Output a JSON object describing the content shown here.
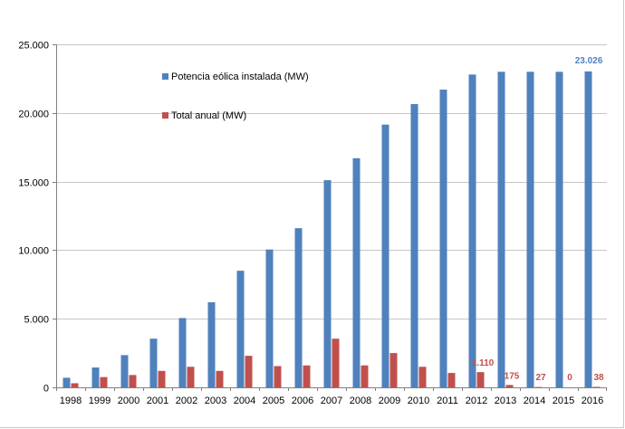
{
  "chart_data": {
    "type": "bar",
    "categories": [
      "1998",
      "1999",
      "2000",
      "2001",
      "2002",
      "2003",
      "2004",
      "2005",
      "2006",
      "2007",
      "2008",
      "2009",
      "2010",
      "2011",
      "2012",
      "2013",
      "2014",
      "2015",
      "2016"
    ],
    "series": [
      {
        "name": "Potencia eólica instalada (MW)",
        "color": "#4f81bd",
        "values": [
          700,
          1450,
          2350,
          3550,
          5050,
          6200,
          8500,
          10050,
          11600,
          15100,
          16700,
          19150,
          20650,
          21700,
          22800,
          23000,
          23000,
          23000,
          23026
        ]
      },
      {
        "name": "Total anual (MW)",
        "color": "#c0504d",
        "values": [
          300,
          750,
          900,
          1200,
          1500,
          1200,
          2300,
          1550,
          1600,
          3550,
          1600,
          2500,
          1500,
          1050,
          1110,
          175,
          27,
          0,
          38
        ]
      }
    ],
    "data_labels": {
      "blue": [
        {
          "index": 18,
          "text": "23.026"
        }
      ],
      "red": [
        {
          "index": 14,
          "text": "1.110"
        },
        {
          "index": 15,
          "text": "175"
        },
        {
          "index": 16,
          "text": "27"
        },
        {
          "index": 17,
          "text": "0"
        },
        {
          "index": 18,
          "text": "38"
        }
      ]
    },
    "yticks": [
      "0",
      "5.000",
      "10.000",
      "15.000",
      "20.000",
      "25.000"
    ],
    "ylim": [
      0,
      25000
    ],
    "grid": true,
    "legend_placement": "top-left inside"
  }
}
